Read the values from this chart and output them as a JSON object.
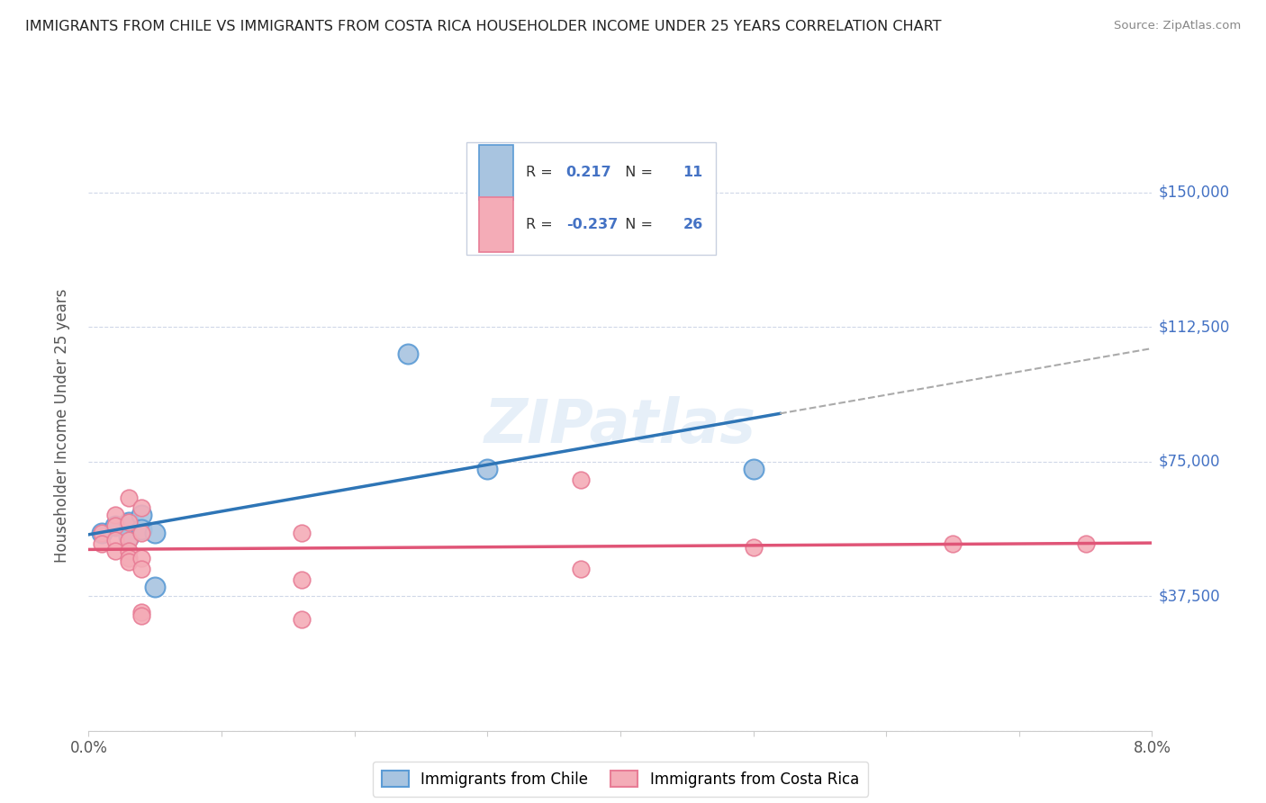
{
  "title": "IMMIGRANTS FROM CHILE VS IMMIGRANTS FROM COSTA RICA HOUSEHOLDER INCOME UNDER 25 YEARS CORRELATION CHART",
  "source": "Source: ZipAtlas.com",
  "ylabel": "Householder Income Under 25 years",
  "xlim": [
    0.0,
    0.08
  ],
  "ylim": [
    0,
    170000
  ],
  "yticks": [
    0,
    37500,
    75000,
    112500,
    150000
  ],
  "ytick_labels": [
    "",
    "$37,500",
    "$75,000",
    "$112,500",
    "$150,000"
  ],
  "xticks": [
    0.0,
    0.01,
    0.02,
    0.03,
    0.04,
    0.05,
    0.06,
    0.07,
    0.08
  ],
  "xtick_labels": [
    "0.0%",
    "",
    "",
    "",
    "",
    "",
    "",
    "",
    "8.0%"
  ],
  "chile_color": "#a8c4e0",
  "chile_edge_color": "#5b9bd5",
  "costa_rica_color": "#f4acb7",
  "costa_rica_edge_color": "#e87d96",
  "line_chile_color": "#2e75b6",
  "line_costa_rica_color": "#e05577",
  "dashed_line_color": "#aaaaaa",
  "R_chile": 0.217,
  "N_chile": 11,
  "R_costa_rica": -0.237,
  "N_costa_rica": 26,
  "watermark": "ZIPatlas",
  "chile_points": [
    [
      0.001,
      55000
    ],
    [
      0.002,
      57000
    ],
    [
      0.003,
      58000
    ],
    [
      0.003,
      54000
    ],
    [
      0.004,
      60000
    ],
    [
      0.004,
      56000
    ],
    [
      0.005,
      55000
    ],
    [
      0.005,
      40000
    ],
    [
      0.024,
      105000
    ],
    [
      0.03,
      73000
    ],
    [
      0.05,
      73000
    ]
  ],
  "costa_rica_points": [
    [
      0.001,
      55000
    ],
    [
      0.001,
      52000
    ],
    [
      0.002,
      60000
    ],
    [
      0.002,
      57000
    ],
    [
      0.002,
      53000
    ],
    [
      0.002,
      50000
    ],
    [
      0.003,
      65000
    ],
    [
      0.003,
      58000
    ],
    [
      0.003,
      53000
    ],
    [
      0.003,
      50000
    ],
    [
      0.003,
      48000
    ],
    [
      0.003,
      47000
    ],
    [
      0.004,
      62000
    ],
    [
      0.004,
      55000
    ],
    [
      0.004,
      48000
    ],
    [
      0.004,
      45000
    ],
    [
      0.004,
      33000
    ],
    [
      0.004,
      32000
    ],
    [
      0.016,
      55000
    ],
    [
      0.016,
      42000
    ],
    [
      0.016,
      31000
    ],
    [
      0.037,
      70000
    ],
    [
      0.037,
      45000
    ],
    [
      0.05,
      51000
    ],
    [
      0.065,
      52000
    ],
    [
      0.075,
      52000
    ]
  ],
  "background_color": "#ffffff",
  "grid_color": "#d0d8e8",
  "title_color": "#222222",
  "axis_label_color": "#555555",
  "right_label_color": "#4472c4",
  "source_color": "#888888",
  "legend_text_color": "#333333",
  "legend_value_color": "#4472c4"
}
